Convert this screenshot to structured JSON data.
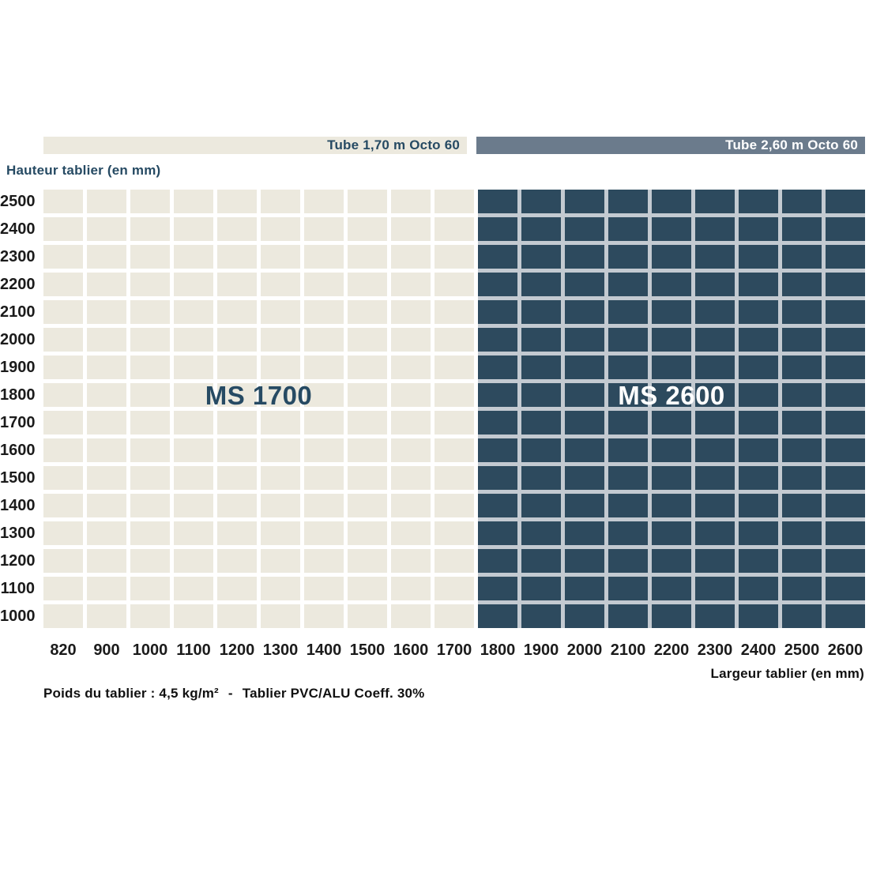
{
  "header": {
    "bar1": {
      "label": "Tube 1,70 m Octo 60",
      "color": "#ece9de",
      "text_color": "#264a63"
    },
    "bar2": {
      "label": "Tube 2,60 m Octo 60",
      "color": "#6b7b8c",
      "text_color": "#ffffff"
    }
  },
  "chart_data": {
    "type": "heatmap",
    "title": "",
    "xlabel": "Largeur tablier (en mm)",
    "ylabel": "Hauteur tablier (en mm)",
    "x_ticks": [
      "820",
      "900",
      "1000",
      "1100",
      "1200",
      "1300",
      "1400",
      "1500",
      "1600",
      "1700",
      "1800",
      "1900",
      "2000",
      "2100",
      "2200",
      "2300",
      "2400",
      "2500",
      "2600"
    ],
    "y_ticks": [
      "2500",
      "2400",
      "2300",
      "2200",
      "2100",
      "2000",
      "1900",
      "1800",
      "1700",
      "1600",
      "1500",
      "1400",
      "1300",
      "1200",
      "1100",
      "1000"
    ],
    "dark_start_index": 10,
    "grid": true,
    "legend_position": "top",
    "regions": [
      {
        "name": "MS 1700",
        "label": "MS 1700",
        "tube": "Tube 1,70 m Octo 60",
        "x_range": [
          "820",
          "1700"
        ],
        "y_range": [
          "1000",
          "2500"
        ],
        "color": "#ece9de",
        "label_color": "#264a63",
        "gap_color": "#ffffff"
      },
      {
        "name": "MS 2600",
        "label": "MS 2600",
        "tube": "Tube 2,60 m Octo 60",
        "x_range": [
          "1800",
          "2600"
        ],
        "y_range": [
          "1000",
          "2500"
        ],
        "color": "#2d4a5e",
        "label_color": "#ffffff",
        "gap_color": "#c3cad1"
      }
    ]
  },
  "footer": {
    "note_left": "Poids du tablier : 4,5 kg/m²",
    "note_sep": "-",
    "note_right": "Tablier PVC/ALU Coeff. 30%"
  }
}
